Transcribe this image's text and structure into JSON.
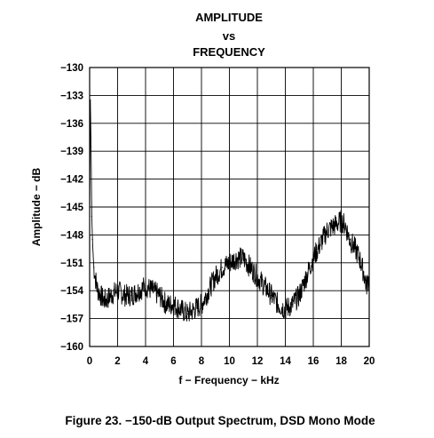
{
  "figure": {
    "caption": "Figure 23. −150-dB Output Spectrum, DSD Mono Mode"
  },
  "chart_data": {
    "type": "line",
    "title_lines": [
      "AMPLITUDE",
      "vs",
      "FREQUENCY"
    ],
    "xlabel": "f − Frequency − kHz",
    "ylabel": "Amplitude − dB",
    "xlim": [
      0,
      20
    ],
    "ylim": [
      -160,
      -130
    ],
    "x_ticks": [
      0,
      2,
      4,
      6,
      8,
      10,
      12,
      14,
      16,
      18,
      20
    ],
    "y_ticks": [
      -130,
      -133,
      -136,
      -139,
      -142,
      -145,
      -148,
      -151,
      -154,
      -157,
      -160
    ],
    "y_tick_labels": [
      "−130",
      "−133",
      "−136",
      "−139",
      "−142",
      "−145",
      "−148",
      "−151",
      "−154",
      "−157",
      "−160"
    ],
    "grid": true,
    "series": [
      {
        "color": "#000000",
        "x": [
          0,
          0.05,
          0.1,
          0.15,
          0.2,
          0.3,
          0.4,
          0.5,
          0.6,
          0.8,
          1.0,
          1.2,
          1.5,
          2.0,
          2.5,
          3.0,
          3.5,
          4.0,
          4.5,
          5.0,
          5.5,
          6.0,
          6.5,
          7.0,
          7.5,
          8.0,
          8.5,
          9.0,
          9.5,
          10.0,
          10.5,
          11.0,
          11.5,
          12.0,
          12.5,
          13.0,
          13.5,
          14.0,
          14.5,
          15.0,
          15.5,
          16.0,
          16.5,
          17.0,
          17.5,
          18.0,
          18.3,
          18.6,
          19.0,
          19.3,
          19.6,
          19.8,
          20.0
        ],
        "y": [
          -146,
          -133.5,
          -138.5,
          -146,
          -148.5,
          -151.5,
          -152.5,
          -153.5,
          -154,
          -154.5,
          -155,
          -155,
          -154.5,
          -154,
          -154.5,
          -154.5,
          -154,
          -153.5,
          -154,
          -154.5,
          -155.5,
          -155.5,
          -156,
          -156.5,
          -156,
          -155.5,
          -154,
          -152.5,
          -151.5,
          -151,
          -150.5,
          -150.5,
          -151.5,
          -152.5,
          -153.5,
          -154.5,
          -155.5,
          -156,
          -155.5,
          -154.5,
          -152.5,
          -150.5,
          -149,
          -147.5,
          -147,
          -146.5,
          -147,
          -148.5,
          -149.5,
          -150.5,
          -152,
          -153.5,
          -152.5
        ]
      }
    ]
  }
}
